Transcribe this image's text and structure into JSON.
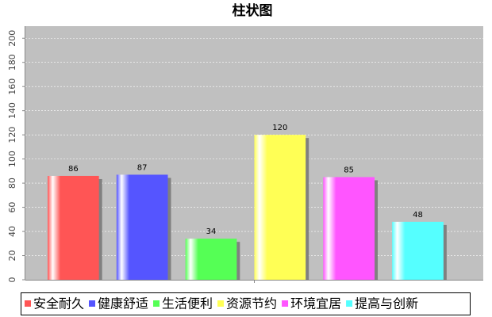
{
  "chart_data": {
    "type": "bar",
    "title": "柱状图",
    "categories": [
      null
    ],
    "series": [
      {
        "name": "安全耐久",
        "color": "#ff5555",
        "values": [
          86
        ]
      },
      {
        "name": "健康舒适",
        "color": "#5555ff",
        "values": [
          87
        ]
      },
      {
        "name": "生活便利",
        "color": "#55ff55",
        "values": [
          34
        ]
      },
      {
        "name": "资源节约",
        "color": "#ffff55",
        "values": [
          120
        ]
      },
      {
        "name": "环境宜居",
        "color": "#ff55ff",
        "values": [
          85
        ]
      },
      {
        "name": "提高与创新",
        "color": "#55ffff",
        "values": [
          48
        ]
      }
    ],
    "ylim": [
      0,
      210
    ],
    "yticks": [
      0,
      20,
      40,
      60,
      80,
      100,
      120,
      140,
      160,
      180,
      200
    ],
    "grid": true
  }
}
